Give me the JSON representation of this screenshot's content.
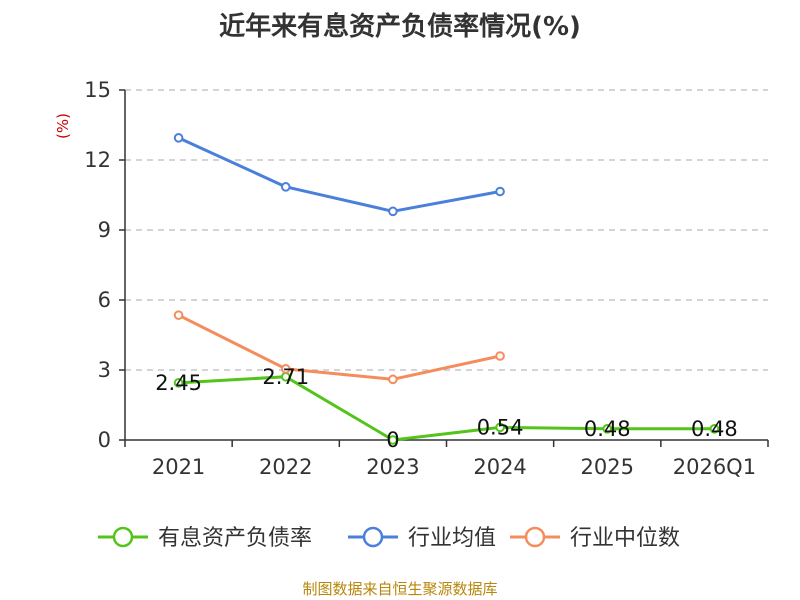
{
  "chart_data": {
    "type": "line",
    "title": "近年来有息资产负债率情况(%)",
    "ylabel": "(%)",
    "xlabel": "",
    "categories": [
      "2021",
      "2022",
      "2023",
      "2024",
      "2025",
      "2026Q1"
    ],
    "ylim": [
      0,
      15
    ],
    "yticks": [
      0,
      3,
      6,
      9,
      12,
      15
    ],
    "grid": true,
    "legend_position": "bottom",
    "series": [
      {
        "name": "有息资产负债率",
        "color": "#52c41a",
        "values": [
          2.45,
          2.71,
          0,
          0.54,
          0.48,
          0.48
        ],
        "labels": [
          "2.45",
          "2.71",
          "0",
          "0.54",
          "0.48",
          "0.48"
        ]
      },
      {
        "name": "行业均值",
        "color": "#4a7fdc",
        "values": [
          12.95,
          10.85,
          9.8,
          10.65,
          null,
          null
        ]
      },
      {
        "name": "行业中位数",
        "color": "#f58c5c",
        "values": [
          5.35,
          3.05,
          2.6,
          3.6,
          null,
          null
        ]
      }
    ]
  },
  "source_note": "制图数据来自恒生聚源数据库"
}
